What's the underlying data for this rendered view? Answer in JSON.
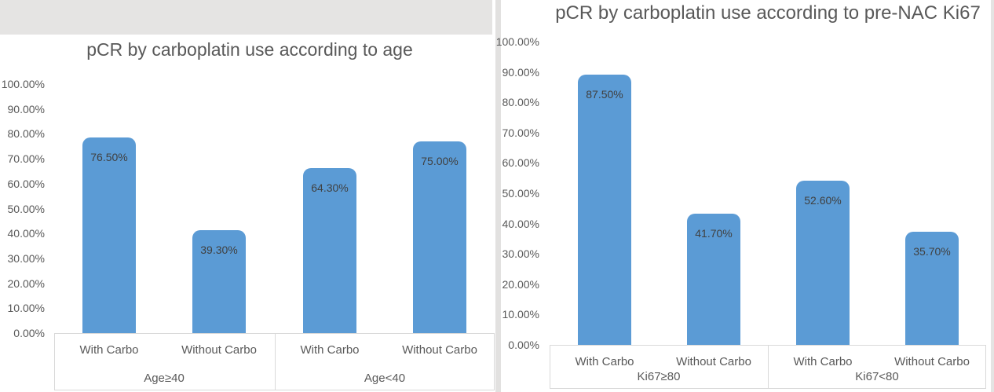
{
  "colors": {
    "bar_fill": "#5b9bd5",
    "title_text": "#595959",
    "axis_text": "#595959",
    "data_label_text": "#404040",
    "border_line": "#d9d9d9",
    "worksheet_band": "#e5e4e3"
  },
  "chart_data": [
    {
      "type": "bar",
      "title": "pCR by carboplatin use according to age",
      "ylabel": "",
      "ylim": [
        0,
        100
      ],
      "grid": false,
      "legend": "none",
      "y_tick_labels": [
        "100.00%",
        "90.00%",
        "80.00%",
        "70.00%",
        "60.00%",
        "50.00%",
        "40.00%",
        "30.00%",
        "20.00%",
        "10.00%",
        "0.00%"
      ],
      "groups": [
        {
          "label": "Age≥40",
          "categories": [
            "With Carbo",
            "Without Carbo"
          ],
          "values": [
            76.5,
            39.3
          ],
          "data_labels": [
            "76.50%",
            "39.30%"
          ]
        },
        {
          "label": "Age<40",
          "categories": [
            "With Carbo",
            "Without Carbo"
          ],
          "values": [
            64.3,
            75.0
          ],
          "data_labels": [
            "64.30%",
            "75.00%"
          ]
        }
      ]
    },
    {
      "type": "bar",
      "title": "pCR by carboplatin use according to pre-NAC Ki67",
      "ylabel": "",
      "ylim": [
        0,
        100
      ],
      "grid": false,
      "legend": "none",
      "y_tick_labels": [
        "100.00%",
        "90.00%",
        "80.00%",
        "70.00%",
        "60.00%",
        "50.00%",
        "40.00%",
        "30.00%",
        "20.00%",
        "10.00%",
        "0.00%"
      ],
      "groups": [
        {
          "label": "Ki67≥80",
          "categories": [
            "With Carbo",
            "Without Carbo"
          ],
          "values": [
            87.5,
            41.7
          ],
          "data_labels": [
            "87.50%",
            "41.70%"
          ]
        },
        {
          "label": "Ki67<80",
          "categories": [
            "With Carbo",
            "Without Carbo"
          ],
          "values": [
            52.6,
            35.7
          ],
          "data_labels": [
            "52.60%",
            "35.70%"
          ]
        }
      ]
    }
  ]
}
